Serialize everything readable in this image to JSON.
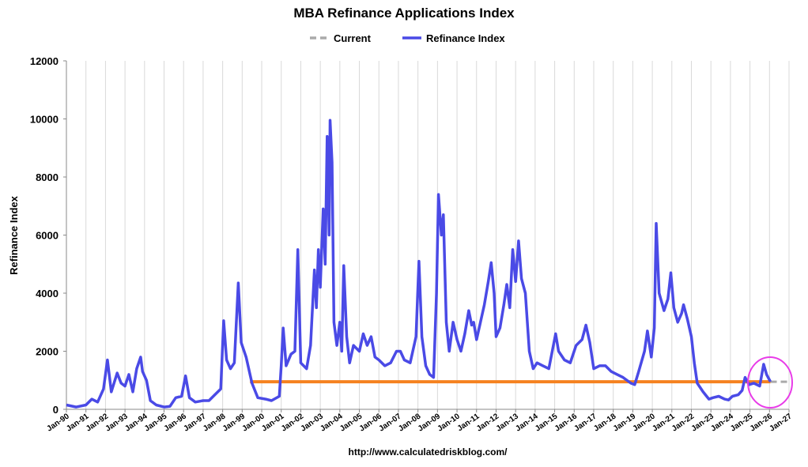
{
  "chart_data": {
    "type": "line",
    "title": "MBA Refinance Applications Index",
    "y_label": "Refinance Index",
    "source": "http://www.calculatedriskblog.com/",
    "xlim": [
      1990,
      2027
    ],
    "ylim": [
      0,
      12000
    ],
    "yticks": [
      0,
      2000,
      4000,
      6000,
      8000,
      10000,
      12000
    ],
    "xticks": [
      {
        "value": 1990,
        "label": "Jan-90"
      },
      {
        "value": 1991,
        "label": "Jan-91"
      },
      {
        "value": 1992,
        "label": "Jan-92"
      },
      {
        "value": 1993,
        "label": "Jan-93"
      },
      {
        "value": 1994,
        "label": "Jan-94"
      },
      {
        "value": 1995,
        "label": "Jan-95"
      },
      {
        "value": 1996,
        "label": "Jan-96"
      },
      {
        "value": 1997,
        "label": "Jan-97"
      },
      {
        "value": 1998,
        "label": "Jan-98"
      },
      {
        "value": 1999,
        "label": "Jan-99"
      },
      {
        "value": 2000,
        "label": "Jan-00"
      },
      {
        "value": 2001,
        "label": "Jan-01"
      },
      {
        "value": 2002,
        "label": "Jan-02"
      },
      {
        "value": 2003,
        "label": "Jan-03"
      },
      {
        "value": 2004,
        "label": "Jan-04"
      },
      {
        "value": 2005,
        "label": "Jan-05"
      },
      {
        "value": 2006,
        "label": "Jan-06"
      },
      {
        "value": 2007,
        "label": "Jan-07"
      },
      {
        "value": 2008,
        "label": "Jan-08"
      },
      {
        "value": 2009,
        "label": "Jan-09"
      },
      {
        "value": 2010,
        "label": "Jan-10"
      },
      {
        "value": 2011,
        "label": "Jan-11"
      },
      {
        "value": 2012,
        "label": "Jan-12"
      },
      {
        "value": 2013,
        "label": "Jan-13"
      },
      {
        "value": 2014,
        "label": "Jan-14"
      },
      {
        "value": 2015,
        "label": "Jan-15"
      },
      {
        "value": 2016,
        "label": "Jan-16"
      },
      {
        "value": 2017,
        "label": "Jan-17"
      },
      {
        "value": 2018,
        "label": "Jan-18"
      },
      {
        "value": 2019,
        "label": "Jan-19"
      },
      {
        "value": 2020,
        "label": "Jan-20"
      },
      {
        "value": 2021,
        "label": "Jan-21"
      },
      {
        "value": 2022,
        "label": "Jan-22"
      },
      {
        "value": 2023,
        "label": "Jan-23"
      },
      {
        "value": 2024,
        "label": "Jan-24"
      },
      {
        "value": 2025,
        "label": "Jan-25"
      },
      {
        "value": 2026,
        "label": "Jan-26"
      },
      {
        "value": 2027,
        "label": "Jan-27"
      }
    ],
    "grid": "x",
    "series": [
      {
        "name": "Refinance Index",
        "color": "#4a4ae6",
        "width": 3.5,
        "x": [
          1990.0,
          1990.5,
          1991.0,
          1991.3,
          1991.6,
          1991.9,
          1992.1,
          1992.3,
          1992.6,
          1992.8,
          1993.0,
          1993.2,
          1993.4,
          1993.6,
          1993.8,
          1993.9,
          1994.1,
          1994.3,
          1994.6,
          1995.0,
          1995.3,
          1995.6,
          1995.9,
          1996.1,
          1996.3,
          1996.6,
          1997.0,
          1997.3,
          1997.6,
          1997.9,
          1998.05,
          1998.2,
          1998.4,
          1998.6,
          1998.8,
          1998.95,
          1999.2,
          1999.5,
          1999.8,
          2000.2,
          2000.5,
          2000.9,
          2001.0,
          2001.1,
          2001.25,
          2001.5,
          2001.7,
          2001.85,
          2002.0,
          2002.3,
          2002.5,
          2002.7,
          2002.8,
          2002.9,
          2003.0,
          2003.15,
          2003.25,
          2003.35,
          2003.45,
          2003.5,
          2003.6,
          2003.7,
          2003.85,
          2004.0,
          2004.1,
          2004.2,
          2004.35,
          2004.5,
          2004.7,
          2005.0,
          2005.2,
          2005.4,
          2005.6,
          2005.8,
          2006.0,
          2006.3,
          2006.6,
          2006.9,
          2007.1,
          2007.3,
          2007.6,
          2007.9,
          2008.05,
          2008.2,
          2008.4,
          2008.6,
          2008.8,
          2008.95,
          2009.05,
          2009.2,
          2009.3,
          2009.45,
          2009.6,
          2009.8,
          2010.0,
          2010.2,
          2010.4,
          2010.6,
          2010.75,
          2010.85,
          2011.0,
          2011.2,
          2011.4,
          2011.6,
          2011.75,
          2011.9,
          2012.0,
          2012.2,
          2012.4,
          2012.55,
          2012.7,
          2012.85,
          2013.0,
          2013.15,
          2013.3,
          2013.5,
          2013.7,
          2013.9,
          2014.1,
          2014.4,
          2014.7,
          2015.05,
          2015.2,
          2015.5,
          2015.8,
          2016.1,
          2016.4,
          2016.6,
          2016.8,
          2017.0,
          2017.3,
          2017.6,
          2017.9,
          2018.2,
          2018.5,
          2018.9,
          2019.1,
          2019.3,
          2019.6,
          2019.75,
          2019.95,
          2020.1,
          2020.2,
          2020.35,
          2020.6,
          2020.8,
          2020.95,
          2021.1,
          2021.3,
          2021.5,
          2021.6,
          2021.8,
          2022.0,
          2022.15,
          2022.3,
          2022.6,
          2022.9,
          2023.1,
          2023.4,
          2023.7,
          2023.9,
          2024.1,
          2024.4,
          2024.6,
          2024.75,
          2024.95,
          2025.2,
          2025.5,
          2025.7,
          2025.85,
          2026.05
        ],
        "values": [
          150,
          80,
          150,
          350,
          250,
          700,
          1700,
          600,
          1250,
          900,
          800,
          1200,
          600,
          1400,
          1800,
          1300,
          1000,
          300,
          150,
          80,
          100,
          400,
          450,
          1150,
          400,
          250,
          300,
          300,
          500,
          700,
          3050,
          1700,
          1400,
          1600,
          4350,
          2300,
          1800,
          900,
          400,
          350,
          300,
          450,
          1500,
          2800,
          1500,
          1900,
          2000,
          5500,
          1600,
          1400,
          2200,
          4800,
          3500,
          5500,
          4200,
          6900,
          5000,
          9400,
          6000,
          9950,
          8500,
          3000,
          2200,
          3000,
          2000,
          4950,
          2500,
          1600,
          2200,
          2000,
          2600,
          2200,
          2500,
          1800,
          1700,
          1500,
          1600,
          2000,
          2000,
          1700,
          1600,
          2500,
          5100,
          2500,
          1500,
          1200,
          1100,
          4000,
          7400,
          6000,
          6700,
          3000,
          2000,
          3000,
          2400,
          2000,
          2600,
          3400,
          2900,
          3000,
          2400,
          3000,
          3600,
          4400,
          5050,
          4000,
          2500,
          2800,
          3600,
          4300,
          3500,
          5500,
          4400,
          5800,
          4500,
          4000,
          2000,
          1400,
          1600,
          1500,
          1400,
          2600,
          2000,
          1700,
          1600,
          2200,
          2400,
          2900,
          2300,
          1400,
          1500,
          1500,
          1300,
          1200,
          1100,
          900,
          850,
          1300,
          2000,
          2700,
          1800,
          2800,
          6400,
          4000,
          3400,
          3800,
          4700,
          3500,
          3000,
          3300,
          3600,
          3100,
          2500,
          1600,
          900,
          600,
          350,
          400,
          450,
          350,
          320,
          450,
          500,
          650,
          1100,
          850,
          900,
          800,
          1550,
          1200,
          950
        ]
      },
      {
        "name": "Current",
        "color": "#aaaaaa",
        "width": 3,
        "dashed": true,
        "x": [
          2026.05,
          2027
        ],
        "values": [
          950,
          950
        ]
      },
      {
        "color": "#f58220",
        "width": 4,
        "x": [
          1999.4,
          2026.05
        ],
        "values": [
          950,
          950
        ]
      }
    ]
  }
}
